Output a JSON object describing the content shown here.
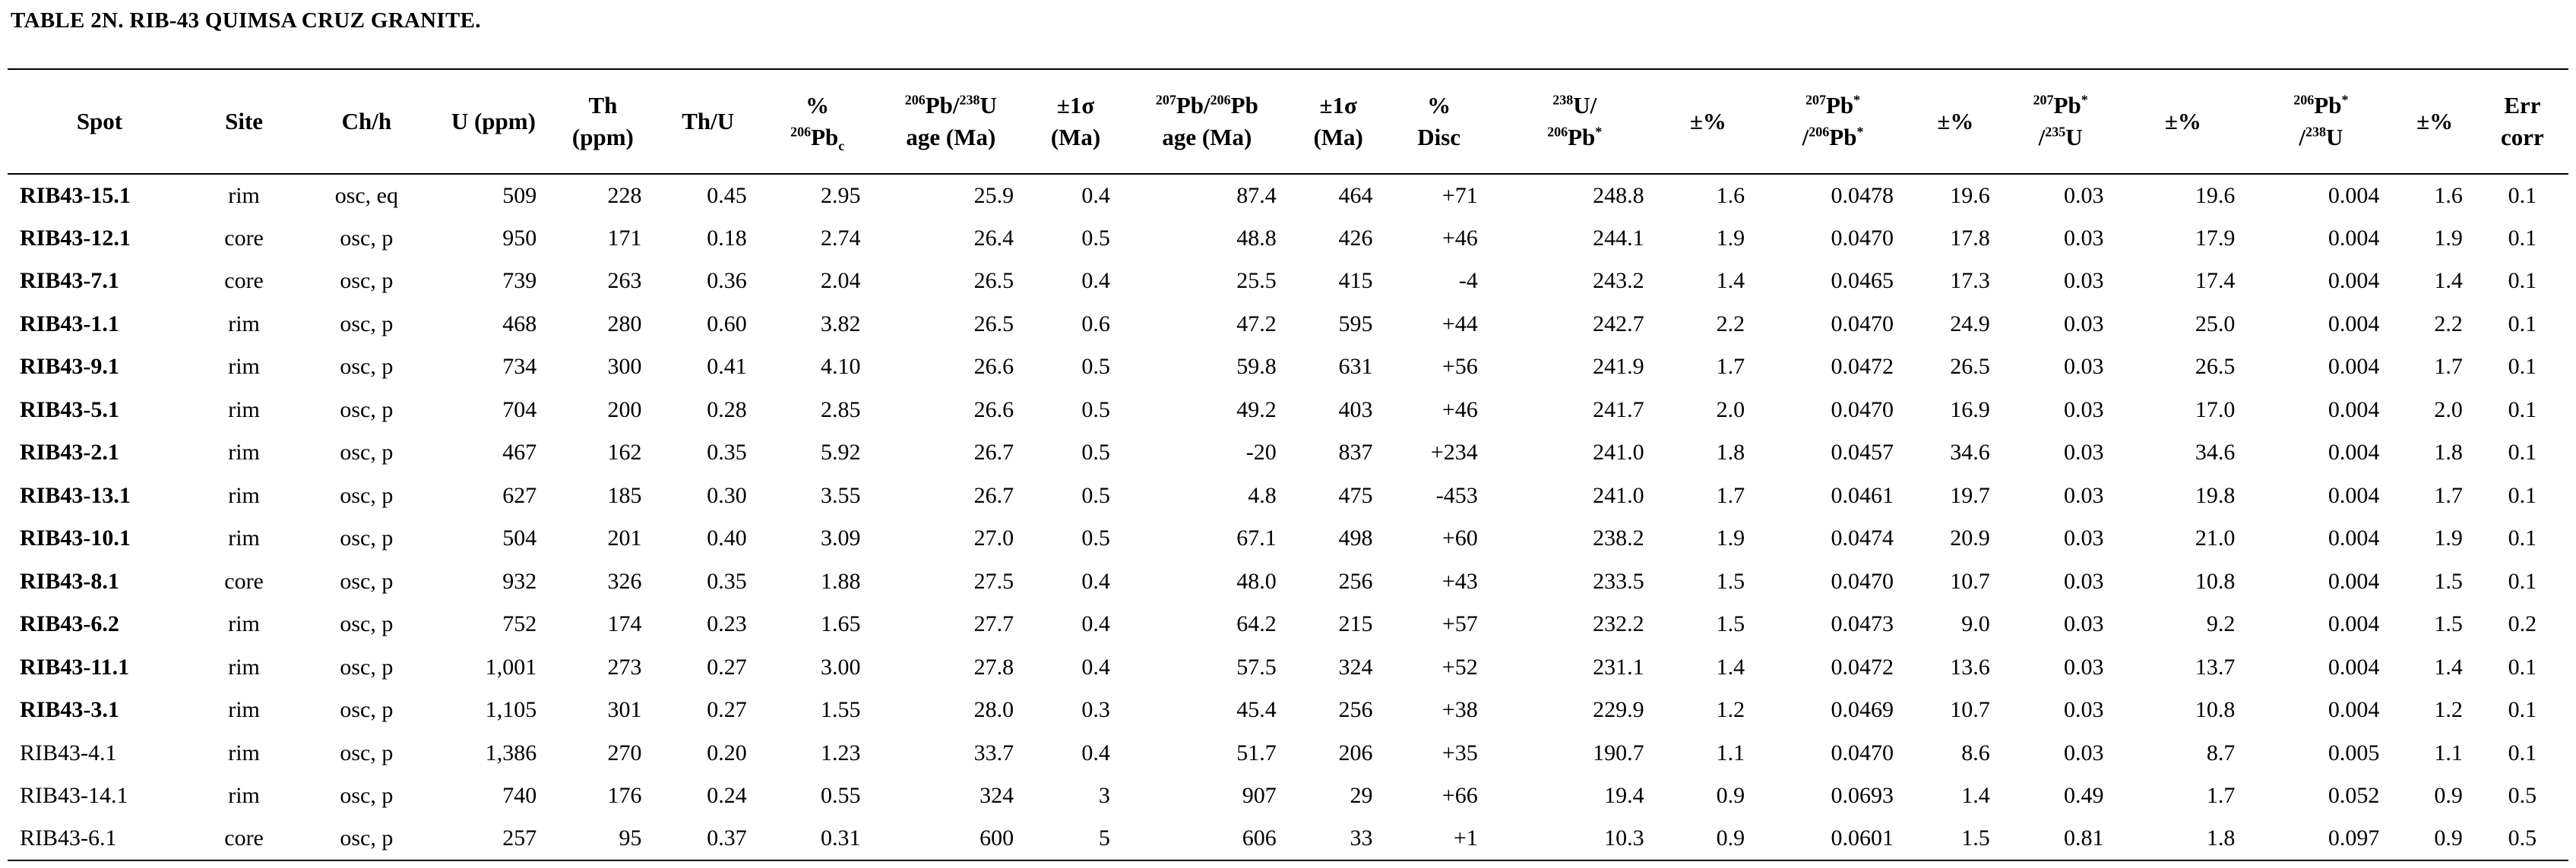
{
  "title": "TABLE 2N. RIB-43 QUIMSA CRUZ GRANITE.",
  "headers": {
    "spot": "Spot",
    "site": "Site",
    "chh": "Ch/h",
    "u": "U (ppm)",
    "th_a": "Th",
    "th_b": "(ppm)",
    "thu": "Th/U",
    "pbc_a": "%",
    "pbc_iso": "206",
    "pbc_el": "Pb",
    "pbc_sub": "c",
    "age1_iso1": "206",
    "age1_el1": "Pb/",
    "age1_iso2": "238",
    "age1_el2": "U",
    "age1_b": "age (Ma)",
    "sig1_a": "±1σ",
    "sig1_b": "(Ma)",
    "age2_iso1": "207",
    "age2_el1": "Pb/",
    "age2_iso2": "206",
    "age2_el2": "Pb",
    "age2_b": "age (Ma)",
    "sig2_a": "±1σ",
    "sig2_b": "(Ma)",
    "disc_a": "%",
    "disc_b": "Disc",
    "r1_iso1": "238",
    "r1_el1": "U/",
    "r1_iso2": "206",
    "r1_el2": "Pb",
    "star": "*",
    "pm": "±%",
    "r2_iso1": "207",
    "r2_el1": "Pb",
    "r2_slash": "/",
    "r2_iso2": "206",
    "r2_el2": "Pb",
    "r3_iso1": "207",
    "r3_el1": "Pb",
    "r3_slash": "/",
    "r3_iso2": "235",
    "r3_el2": "U",
    "r4_iso1": "206",
    "r4_el1": "Pb",
    "r4_slash": "/",
    "r4_iso2": "238",
    "r4_el2": "U",
    "err_a": "Err",
    "err_b": "corr"
  },
  "rows": [
    {
      "bold": true,
      "cells": [
        "RIB43-15.1",
        "rim",
        "osc, eq",
        "509",
        "228",
        "0.45",
        "2.95",
        "25.9",
        "0.4",
        "87.4",
        "464",
        "+71",
        "248.8",
        "1.6",
        "0.0478",
        "19.6",
        "0.03",
        "19.6",
        "0.004",
        "1.6",
        "0.1"
      ]
    },
    {
      "bold": true,
      "cells": [
        "RIB43-12.1",
        "core",
        "osc, p",
        "950",
        "171",
        "0.18",
        "2.74",
        "26.4",
        "0.5",
        "48.8",
        "426",
        "+46",
        "244.1",
        "1.9",
        "0.0470",
        "17.8",
        "0.03",
        "17.9",
        "0.004",
        "1.9",
        "0.1"
      ]
    },
    {
      "bold": true,
      "cells": [
        "RIB43-7.1",
        "core",
        "osc, p",
        "739",
        "263",
        "0.36",
        "2.04",
        "26.5",
        "0.4",
        "25.5",
        "415",
        "-4",
        "243.2",
        "1.4",
        "0.0465",
        "17.3",
        "0.03",
        "17.4",
        "0.004",
        "1.4",
        "0.1"
      ]
    },
    {
      "bold": true,
      "cells": [
        "RIB43-1.1",
        "rim",
        "osc, p",
        "468",
        "280",
        "0.60",
        "3.82",
        "26.5",
        "0.6",
        "47.2",
        "595",
        "+44",
        "242.7",
        "2.2",
        "0.0470",
        "24.9",
        "0.03",
        "25.0",
        "0.004",
        "2.2",
        "0.1"
      ]
    },
    {
      "bold": true,
      "cells": [
        "RIB43-9.1",
        "rim",
        "osc, p",
        "734",
        "300",
        "0.41",
        "4.10",
        "26.6",
        "0.5",
        "59.8",
        "631",
        "+56",
        "241.9",
        "1.7",
        "0.0472",
        "26.5",
        "0.03",
        "26.5",
        "0.004",
        "1.7",
        "0.1"
      ]
    },
    {
      "bold": true,
      "cells": [
        "RIB43-5.1",
        "rim",
        "osc, p",
        "704",
        "200",
        "0.28",
        "2.85",
        "26.6",
        "0.5",
        "49.2",
        "403",
        "+46",
        "241.7",
        "2.0",
        "0.0470",
        "16.9",
        "0.03",
        "17.0",
        "0.004",
        "2.0",
        "0.1"
      ]
    },
    {
      "bold": true,
      "cells": [
        "RIB43-2.1",
        "rim",
        "osc, p",
        "467",
        "162",
        "0.35",
        "5.92",
        "26.7",
        "0.5",
        "-20",
        "837",
        "+234",
        "241.0",
        "1.8",
        "0.0457",
        "34.6",
        "0.03",
        "34.6",
        "0.004",
        "1.8",
        "0.1"
      ]
    },
    {
      "bold": true,
      "cells": [
        "RIB43-13.1",
        "rim",
        "osc, p",
        "627",
        "185",
        "0.30",
        "3.55",
        "26.7",
        "0.5",
        "4.8",
        "475",
        "-453",
        "241.0",
        "1.7",
        "0.0461",
        "19.7",
        "0.03",
        "19.8",
        "0.004",
        "1.7",
        "0.1"
      ]
    },
    {
      "bold": true,
      "cells": [
        "RIB43-10.1",
        "rim",
        "osc, p",
        "504",
        "201",
        "0.40",
        "3.09",
        "27.0",
        "0.5",
        "67.1",
        "498",
        "+60",
        "238.2",
        "1.9",
        "0.0474",
        "20.9",
        "0.03",
        "21.0",
        "0.004",
        "1.9",
        "0.1"
      ]
    },
    {
      "bold": true,
      "cells": [
        "RIB43-8.1",
        "core",
        "osc, p",
        "932",
        "326",
        "0.35",
        "1.88",
        "27.5",
        "0.4",
        "48.0",
        "256",
        "+43",
        "233.5",
        "1.5",
        "0.0470",
        "10.7",
        "0.03",
        "10.8",
        "0.004",
        "1.5",
        "0.1"
      ]
    },
    {
      "bold": true,
      "cells": [
        "RIB43-6.2",
        "rim",
        "osc, p",
        "752",
        "174",
        "0.23",
        "1.65",
        "27.7",
        "0.4",
        "64.2",
        "215",
        "+57",
        "232.2",
        "1.5",
        "0.0473",
        "9.0",
        "0.03",
        "9.2",
        "0.004",
        "1.5",
        "0.2"
      ]
    },
    {
      "bold": true,
      "cells": [
        "RIB43-11.1",
        "rim",
        "osc, p",
        "1,001",
        "273",
        "0.27",
        "3.00",
        "27.8",
        "0.4",
        "57.5",
        "324",
        "+52",
        "231.1",
        "1.4",
        "0.0472",
        "13.6",
        "0.03",
        "13.7",
        "0.004",
        "1.4",
        "0.1"
      ]
    },
    {
      "bold": true,
      "cells": [
        "RIB43-3.1",
        "rim",
        "osc, p",
        "1,105",
        "301",
        "0.27",
        "1.55",
        "28.0",
        "0.3",
        "45.4",
        "256",
        "+38",
        "229.9",
        "1.2",
        "0.0469",
        "10.7",
        "0.03",
        "10.8",
        "0.004",
        "1.2",
        "0.1"
      ]
    },
    {
      "bold": false,
      "cells": [
        "RIB43-4.1",
        "rim",
        "osc, p",
        "1,386",
        "270",
        "0.20",
        "1.23",
        "33.7",
        "0.4",
        "51.7",
        "206",
        "+35",
        "190.7",
        "1.1",
        "0.0470",
        "8.6",
        "0.03",
        "8.7",
        "0.005",
        "1.1",
        "0.1"
      ]
    },
    {
      "bold": false,
      "cells": [
        "RIB43-14.1",
        "rim",
        "osc, p",
        "740",
        "176",
        "0.24",
        "0.55",
        "324",
        "3",
        "907",
        "29",
        "+66",
        "19.4",
        "0.9",
        "0.0693",
        "1.4",
        "0.49",
        "1.7",
        "0.052",
        "0.9",
        "0.5"
      ]
    },
    {
      "bold": false,
      "cells": [
        "RIB43-6.1",
        "core",
        "osc, p",
        "257",
        "95",
        "0.37",
        "0.31",
        "600",
        "5",
        "606",
        "33",
        "+1",
        "10.3",
        "0.9",
        "0.0601",
        "1.5",
        "0.81",
        "1.8",
        "0.097",
        "0.9",
        "0.5"
      ]
    }
  ]
}
